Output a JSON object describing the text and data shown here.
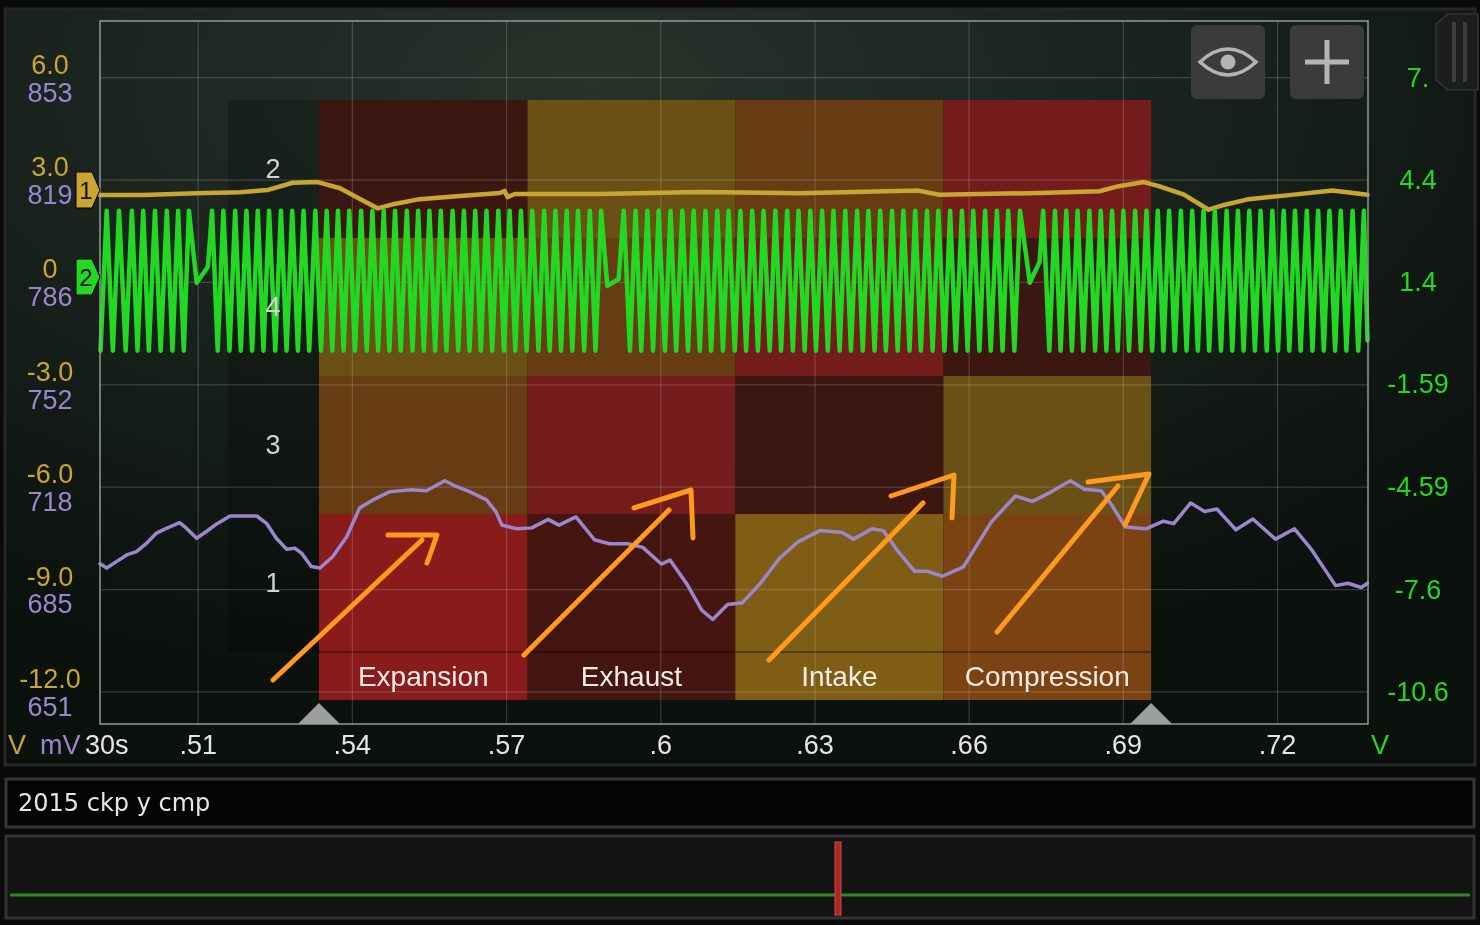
{
  "chart_data": {
    "type": "line",
    "title": "2015 ckp y cmp",
    "xlabel": "30s",
    "ylabel": "V",
    "y2label": "V",
    "y3label": "mV",
    "annotations": [
      "2",
      "4",
      "3",
      "1"
    ],
    "xlim": [
      0.4909,
      0.7376
    ],
    "xticks": [
      {
        "value": 0.51,
        "label": ".51"
      },
      {
        "value": 0.54,
        "label": ".54"
      },
      {
        "value": 0.57,
        "label": ".57"
      },
      {
        "value": 0.6,
        "label": ".6"
      },
      {
        "value": 0.63,
        "label": ".63"
      },
      {
        "value": 0.66,
        "label": ".66"
      },
      {
        "value": 0.69,
        "label": ".69"
      },
      {
        "value": 0.72,
        "label": ".72"
      }
    ],
    "ylim": [
      -12.94,
      7.66
    ],
    "yticks": [
      {
        "value": 6,
        "label": "6.0"
      },
      {
        "value": 3,
        "label": "3.0"
      },
      0,
      {
        "value": -3,
        "label": "-3.0"
      },
      {
        "value": -6,
        "label": "-6.0"
      },
      {
        "value": -9,
        "label": "-9.0"
      },
      {
        "value": -12,
        "label": "-12.0"
      }
    ],
    "y2lim": [
      -11.54,
      9.06
    ],
    "y2ticks": [
      {
        "value": 7.4,
        "label": "7."
      },
      4.4,
      1.4,
      -1.59,
      -4.59,
      -7.6,
      -10.6
    ],
    "y3lim": [
      640.4,
      871.6
    ],
    "y3ticks": [
      853,
      {
        "value": 819.33,
        "label": "819"
      },
      {
        "value": 785.67,
        "label": "786"
      },
      752,
      {
        "value": 718.33,
        "label": "718"
      },
      {
        "value": 684.67,
        "label": "685"
      },
      651
    ],
    "grid": true,
    "legend": "left",
    "bands": [
      {
        "axis": "x",
        "from": 0.5335,
        "to": 0.5741,
        "label": "Expansion",
        "color": "#8a1b1b"
      },
      {
        "axis": "x",
        "from": 0.5741,
        "to": 0.6145,
        "label": "Exhaust",
        "color": "#45150f"
      },
      {
        "axis": "x",
        "from": 0.6145,
        "to": 0.655,
        "label": "Intake",
        "color": "#7f5d14"
      },
      {
        "axis": "x",
        "from": 0.655,
        "to": 0.6954,
        "label": "Compression",
        "color": "#7b4311"
      }
    ],
    "series": [
      {
        "name": "1",
        "color": "#c9a531",
        "axis": "y",
        "x": [
          0.4909,
          0.4993,
          0.5096,
          0.5181,
          0.5236,
          0.5284,
          0.5333,
          0.5376,
          0.5424,
          0.5449,
          0.5482,
          0.5531,
          0.5609,
          0.5687,
          0.5696,
          0.5702,
          0.5716,
          0.5881,
          0.6075,
          0.627,
          0.6501,
          0.6542,
          0.6736,
          0.6853,
          0.6891,
          0.694,
          0.6969,
          0.7018,
          0.7066,
          0.7096,
          0.7144,
          0.7218,
          0.7307,
          0.7375
        ],
        "values": [
          2.56,
          2.56,
          2.61,
          2.64,
          2.71,
          2.92,
          2.94,
          2.76,
          2.37,
          2.17,
          2.3,
          2.44,
          2.53,
          2.62,
          2.68,
          2.5,
          2.59,
          2.59,
          2.65,
          2.61,
          2.69,
          2.57,
          2.62,
          2.67,
          2.82,
          2.94,
          2.82,
          2.57,
          2.13,
          2.27,
          2.44,
          2.55,
          2.69,
          2.57
        ]
      },
      {
        "name": "2",
        "color": "#22d822",
        "axis": "y2",
        "x": [
          0.491,
          0.4922,
          0.4934,
          0.4946,
          0.4959,
          0.4971,
          0.4982,
          0.4993,
          0.5004,
          0.5016,
          0.5027,
          0.5039,
          0.505,
          0.5061,
          0.5072,
          0.5082,
          0.5097,
          0.5119,
          0.5127,
          0.5138,
          0.5149,
          0.5161,
          0.5172,
          0.5183,
          0.5194,
          0.5205,
          0.5216,
          0.5227,
          0.5238,
          0.525,
          0.5261,
          0.5272,
          0.5283,
          0.5294,
          0.5305,
          0.5316,
          0.5328,
          0.5339,
          0.535,
          0.5361,
          0.5372,
          0.5383,
          0.5394,
          0.5405,
          0.5417,
          0.5428,
          0.5439,
          0.545,
          0.5461,
          0.5472,
          0.5483,
          0.5494,
          0.5506,
          0.5517,
          0.5528,
          0.5539,
          0.555,
          0.5561,
          0.5572,
          0.5583,
          0.5595,
          0.5606,
          0.5617,
          0.5628,
          0.5639,
          0.565,
          0.5661,
          0.5672,
          0.5684,
          0.5695,
          0.5706,
          0.5717,
          0.5728,
          0.5739,
          0.575,
          0.5762,
          0.5773,
          0.5784,
          0.5795,
          0.5806,
          0.5817,
          0.5828,
          0.5839,
          0.5851,
          0.5862,
          0.5873,
          0.5884,
          0.5896,
          0.5918,
          0.5928,
          0.594,
          0.5951,
          0.5962,
          0.5974,
          0.5985,
          0.5996,
          0.6008,
          0.6019,
          0.603,
          0.6042,
          0.6053,
          0.6064,
          0.6076,
          0.6087,
          0.6098,
          0.611,
          0.6121,
          0.6132,
          0.6144,
          0.6155,
          0.6166,
          0.6178,
          0.6189,
          0.62,
          0.6212,
          0.6223,
          0.6234,
          0.6246,
          0.6257,
          0.6268,
          0.628,
          0.6291,
          0.6302,
          0.6314,
          0.6325,
          0.6336,
          0.6348,
          0.6359,
          0.637,
          0.6382,
          0.6393,
          0.6404,
          0.6416,
          0.6427,
          0.6438,
          0.645,
          0.6461,
          0.6472,
          0.6484,
          0.6495,
          0.6506,
          0.6518,
          0.6529,
          0.654,
          0.6552,
          0.6563,
          0.6574,
          0.6586,
          0.6597,
          0.6608,
          0.662,
          0.6631,
          0.6642,
          0.6654,
          0.6665,
          0.6676,
          0.6688,
          0.6699,
          0.6718,
          0.6737,
          0.6744,
          0.6756,
          0.6767,
          0.6778,
          0.6789,
          0.68,
          0.6811,
          0.6822,
          0.6834,
          0.6845,
          0.6856,
          0.6867,
          0.6878,
          0.6889,
          0.69,
          0.6911,
          0.6923,
          0.6934,
          0.6945,
          0.6956,
          0.6967,
          0.6978,
          0.6989,
          0.7,
          0.7012,
          0.7023,
          0.7034,
          0.7045,
          0.7056,
          0.7067,
          0.7078,
          0.709,
          0.7101,
          0.7112,
          0.7123,
          0.7134,
          0.7145,
          0.7156,
          0.7167,
          0.7179,
          0.719,
          0.7201,
          0.7212,
          0.7223,
          0.7234,
          0.7245,
          0.7257,
          0.7268,
          0.7279,
          0.729,
          0.7301,
          0.7312,
          0.7323,
          0.7334,
          0.7346,
          0.7357,
          0.7368,
          0.7375
        ],
        "values": [
          -0.6,
          3.5,
          -0.6,
          3.5,
          -0.6,
          3.5,
          -0.6,
          3.5,
          -0.6,
          3.5,
          -0.6,
          3.5,
          -0.6,
          3.5,
          -0.6,
          3.5,
          1.39,
          1.86,
          3.5,
          -0.6,
          3.5,
          -0.6,
          3.5,
          -0.6,
          3.5,
          -0.6,
          3.5,
          -0.6,
          3.5,
          -0.6,
          3.5,
          -0.6,
          3.5,
          -0.6,
          3.5,
          -0.6,
          3.5,
          -0.6,
          3.5,
          -0.6,
          3.5,
          -0.6,
          3.5,
          -0.6,
          3.5,
          -0.6,
          3.5,
          -0.6,
          3.5,
          -0.6,
          3.5,
          -0.6,
          3.5,
          -0.6,
          3.5,
          -0.6,
          3.5,
          -0.6,
          3.5,
          -0.6,
          3.5,
          -0.6,
          3.5,
          -0.6,
          3.5,
          -0.6,
          3.5,
          -0.6,
          3.5,
          -0.6,
          3.5,
          -0.6,
          3.5,
          -0.6,
          3.5,
          -0.6,
          3.5,
          -0.6,
          3.5,
          -0.6,
          3.5,
          -0.6,
          3.5,
          -0.6,
          3.5,
          -0.6,
          3.5,
          1.3,
          1.5,
          3.5,
          -0.6,
          3.5,
          -0.6,
          3.5,
          -0.6,
          3.5,
          -0.6,
          3.5,
          -0.6,
          3.5,
          -0.6,
          3.5,
          -0.6,
          3.5,
          -0.6,
          3.5,
          -0.6,
          3.5,
          -0.6,
          3.5,
          -0.6,
          3.5,
          -0.6,
          3.5,
          -0.6,
          3.5,
          -0.6,
          3.5,
          -0.6,
          3.5,
          -0.6,
          3.5,
          -0.6,
          3.5,
          -0.6,
          3.5,
          -0.6,
          3.5,
          -0.6,
          3.5,
          -0.6,
          3.5,
          -0.6,
          3.5,
          -0.6,
          3.5,
          -0.6,
          3.5,
          -0.6,
          3.5,
          -0.6,
          3.5,
          -0.6,
          3.5,
          -0.6,
          3.5,
          -0.6,
          3.5,
          -0.6,
          3.5,
          -0.6,
          3.5,
          -0.6,
          3.5,
          -0.6,
          3.5,
          -0.6,
          3.5,
          1.39,
          2.0,
          3.5,
          -0.6,
          3.5,
          -0.6,
          3.5,
          -0.6,
          3.5,
          -0.6,
          3.5,
          -0.6,
          3.5,
          -0.6,
          3.5,
          -0.6,
          3.5,
          -0.6,
          3.5,
          -0.6,
          3.5,
          -0.6,
          3.5,
          -0.6,
          3.5,
          -0.6,
          3.5,
          -0.6,
          3.5,
          -0.6,
          3.5,
          -0.6,
          3.5,
          -0.6,
          3.5,
          -0.6,
          3.5,
          -0.6,
          3.5,
          -0.6,
          3.5,
          -0.6,
          3.5,
          -0.6,
          3.5,
          -0.6,
          3.5,
          -0.6,
          3.5,
          -0.6,
          3.5,
          -0.6,
          3.5,
          -0.6,
          3.5,
          -0.6,
          3.5,
          -0.6,
          3.5,
          -0.3
        ]
      },
      {
        "color": "#9c86cc",
        "axis": "y3",
        "x": [
          0.4909,
          0.4922,
          0.4941,
          0.4961,
          0.498,
          0.5,
          0.5019,
          0.5039,
          0.5064,
          0.5077,
          0.5097,
          0.5116,
          0.5136,
          0.5162,
          0.5214,
          0.5233,
          0.5252,
          0.5272,
          0.5288,
          0.5301,
          0.532,
          0.5337,
          0.5362,
          0.5389,
          0.5414,
          0.544,
          0.5473,
          0.5512,
          0.5544,
          0.558,
          0.5596,
          0.5628,
          0.5661,
          0.5679,
          0.5691,
          0.572,
          0.5749,
          0.5781,
          0.5802,
          0.5835,
          0.5871,
          0.59,
          0.5936,
          0.5965,
          0.6001,
          0.6018,
          0.6051,
          0.608,
          0.6101,
          0.613,
          0.6159,
          0.6195,
          0.6231,
          0.6267,
          0.631,
          0.6353,
          0.6375,
          0.6411,
          0.6433,
          0.6461,
          0.6494,
          0.6519,
          0.6548,
          0.6577,
          0.6589,
          0.6643,
          0.669,
          0.6723,
          0.6757,
          0.6797,
          0.6824,
          0.6857,
          0.6877,
          0.6904,
          0.6944,
          0.6978,
          0.6998,
          0.7031,
          0.7058,
          0.7082,
          0.7119,
          0.7152,
          0.7196,
          0.7233,
          0.7266,
          0.7313,
          0.7337,
          0.7363,
          0.7375
        ],
        "values": [
          693.1,
          691.7,
          693.8,
          696.0,
          697.1,
          699.9,
          703.2,
          704.8,
          706.6,
          704.8,
          701.5,
          703.7,
          706.2,
          708.8,
          708.8,
          706.4,
          701.5,
          697.9,
          698.2,
          696.6,
          692.2,
          691.7,
          695.5,
          702.0,
          711.4,
          714.1,
          716.8,
          717.4,
          717.1,
          720.4,
          719.0,
          716.8,
          714.1,
          710.3,
          705.8,
          704.6,
          704.9,
          707.7,
          705.8,
          708.5,
          701.0,
          699.7,
          699.7,
          698.5,
          693.0,
          694.3,
          686.4,
          677.8,
          674.8,
          679.7,
          680.3,
          686.9,
          694.9,
          700.3,
          704.0,
          703.4,
          701.2,
          704.6,
          704.0,
          697.3,
          690.6,
          690.6,
          689.0,
          691.2,
          692.1,
          706.8,
          715.4,
          713.6,
          716.5,
          720.4,
          717.6,
          717.1,
          712.5,
          705.2,
          704.6,
          707.1,
          706.3,
          713.1,
          710.3,
          711.1,
          704.3,
          707.8,
          701.2,
          704.6,
          697.8,
          685.9,
          686.7,
          685.3,
          686.7
        ]
      }
    ]
  }
}
